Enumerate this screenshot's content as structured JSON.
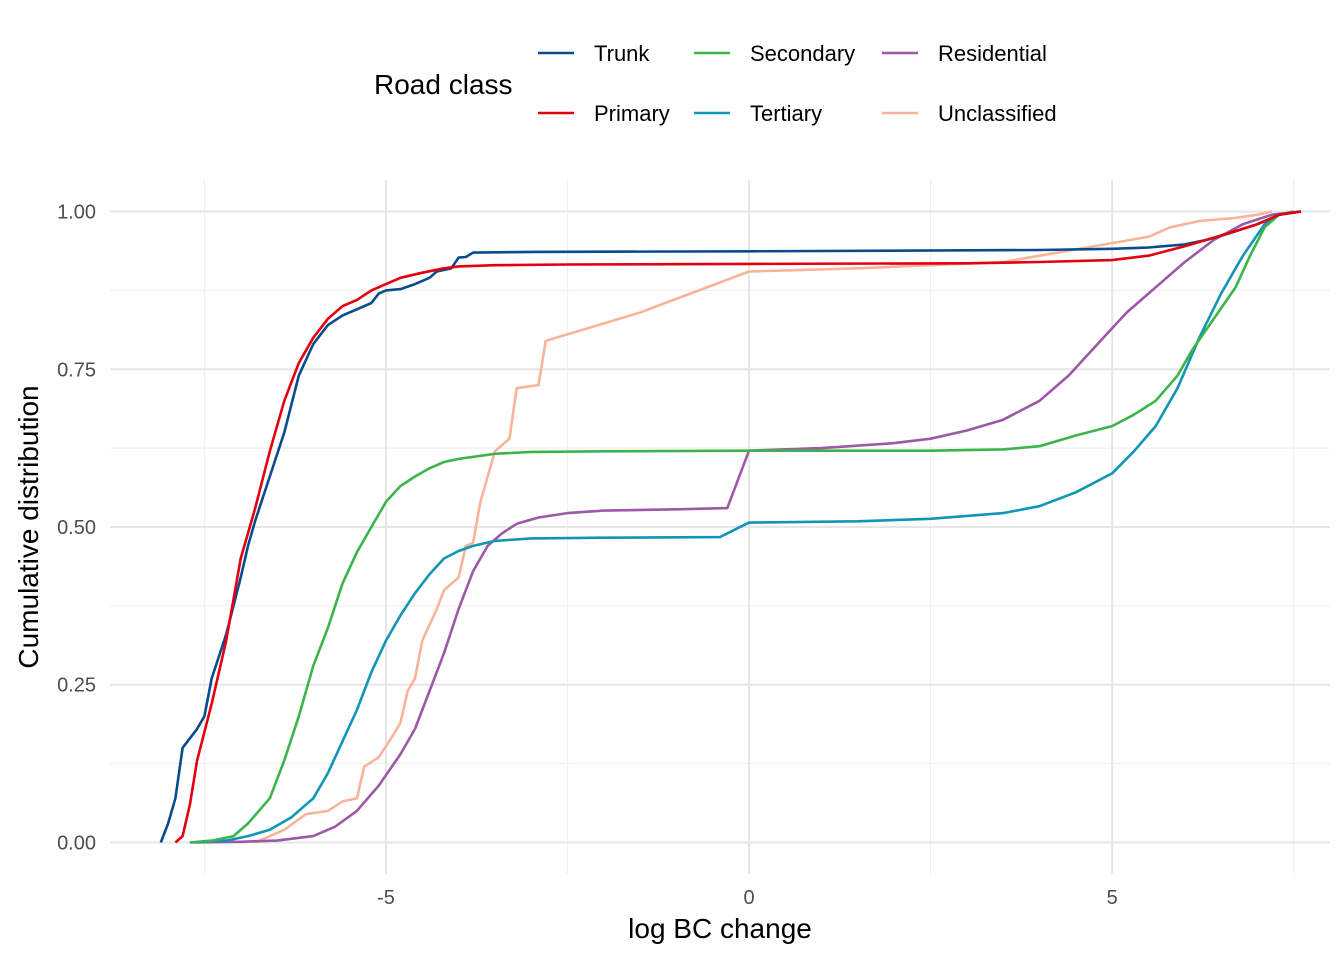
{
  "chart_data": {
    "type": "line",
    "xlabel": "log BC change",
    "ylabel": "Cumulative distribution",
    "xlim": [
      -8.8,
      8.0
    ],
    "ylim": [
      -0.05,
      1.05
    ],
    "x_ticks": [
      -5,
      0,
      5
    ],
    "x_tick_labels": [
      "-5",
      "0",
      "5"
    ],
    "y_ticks": [
      0,
      0.25,
      0.5,
      0.75,
      1.0
    ],
    "y_tick_labels": [
      "0.00",
      "0.25",
      "0.50",
      "0.75",
      "1.00"
    ],
    "grid": true,
    "legend": {
      "title": "Road class",
      "position": "top"
    },
    "series": [
      {
        "name": "Trunk",
        "color": "#084c8d",
        "points": [
          [
            -8.1,
            0.0
          ],
          [
            -8.0,
            0.03
          ],
          [
            -7.9,
            0.07
          ],
          [
            -7.8,
            0.15
          ],
          [
            -7.6,
            0.18
          ],
          [
            -7.5,
            0.2
          ],
          [
            -7.4,
            0.26
          ],
          [
            -7.2,
            0.33
          ],
          [
            -7.0,
            0.42
          ],
          [
            -6.9,
            0.47
          ],
          [
            -6.8,
            0.51
          ],
          [
            -6.6,
            0.58
          ],
          [
            -6.4,
            0.65
          ],
          [
            -6.2,
            0.74
          ],
          [
            -6.0,
            0.79
          ],
          [
            -5.8,
            0.82
          ],
          [
            -5.6,
            0.835
          ],
          [
            -5.4,
            0.845
          ],
          [
            -5.2,
            0.855
          ],
          [
            -5.1,
            0.87
          ],
          [
            -5.0,
            0.875
          ],
          [
            -4.8,
            0.877
          ],
          [
            -4.6,
            0.885
          ],
          [
            -4.4,
            0.895
          ],
          [
            -4.3,
            0.905
          ],
          [
            -4.1,
            0.91
          ],
          [
            -4.0,
            0.927
          ],
          [
            -3.9,
            0.928
          ],
          [
            -3.8,
            0.935
          ],
          [
            -3.0,
            0.936
          ],
          [
            0,
            0.937
          ],
          [
            2.0,
            0.938
          ],
          [
            4.0,
            0.939
          ],
          [
            5.0,
            0.941
          ],
          [
            5.5,
            0.943
          ],
          [
            6.0,
            0.948
          ],
          [
            6.3,
            0.955
          ],
          [
            6.6,
            0.965
          ],
          [
            7.0,
            0.98
          ],
          [
            7.3,
            0.995
          ],
          [
            7.6,
            1.0
          ]
        ]
      },
      {
        "name": "Primary",
        "color": "#e3000f",
        "points": [
          [
            -7.9,
            0.0
          ],
          [
            -7.8,
            0.01
          ],
          [
            -7.7,
            0.06
          ],
          [
            -7.6,
            0.13
          ],
          [
            -7.4,
            0.22
          ],
          [
            -7.2,
            0.32
          ],
          [
            -7.0,
            0.45
          ],
          [
            -6.8,
            0.53
          ],
          [
            -6.6,
            0.62
          ],
          [
            -6.4,
            0.7
          ],
          [
            -6.2,
            0.76
          ],
          [
            -6.0,
            0.8
          ],
          [
            -5.8,
            0.83
          ],
          [
            -5.6,
            0.85
          ],
          [
            -5.4,
            0.86
          ],
          [
            -5.2,
            0.875
          ],
          [
            -5.0,
            0.885
          ],
          [
            -4.8,
            0.895
          ],
          [
            -4.5,
            0.903
          ],
          [
            -4.2,
            0.91
          ],
          [
            -4.0,
            0.913
          ],
          [
            -3.5,
            0.915
          ],
          [
            -2.5,
            0.916
          ],
          [
            0,
            0.917
          ],
          [
            3.0,
            0.918
          ],
          [
            4.0,
            0.92
          ],
          [
            5.0,
            0.923
          ],
          [
            5.5,
            0.93
          ],
          [
            6.0,
            0.945
          ],
          [
            6.5,
            0.962
          ],
          [
            7.0,
            0.98
          ],
          [
            7.3,
            0.995
          ],
          [
            7.6,
            1.0
          ]
        ]
      },
      {
        "name": "Secondary",
        "color": "#3cb44b",
        "points": [
          [
            -7.7,
            0.0
          ],
          [
            -7.4,
            0.003
          ],
          [
            -7.1,
            0.01
          ],
          [
            -6.9,
            0.03
          ],
          [
            -6.6,
            0.07
          ],
          [
            -6.4,
            0.13
          ],
          [
            -6.2,
            0.2
          ],
          [
            -6.0,
            0.28
          ],
          [
            -5.8,
            0.34
          ],
          [
            -5.6,
            0.41
          ],
          [
            -5.4,
            0.46
          ],
          [
            -5.2,
            0.5
          ],
          [
            -5.0,
            0.54
          ],
          [
            -4.8,
            0.565
          ],
          [
            -4.6,
            0.58
          ],
          [
            -4.4,
            0.593
          ],
          [
            -4.2,
            0.603
          ],
          [
            -4.0,
            0.608
          ],
          [
            -3.5,
            0.616
          ],
          [
            -3.0,
            0.619
          ],
          [
            -2.0,
            0.62
          ],
          [
            0,
            0.621
          ],
          [
            2.5,
            0.621
          ],
          [
            3.5,
            0.623
          ],
          [
            4.0,
            0.628
          ],
          [
            4.5,
            0.645
          ],
          [
            5.0,
            0.66
          ],
          [
            5.3,
            0.678
          ],
          [
            5.6,
            0.7
          ],
          [
            5.9,
            0.74
          ],
          [
            6.1,
            0.78
          ],
          [
            6.4,
            0.83
          ],
          [
            6.7,
            0.88
          ],
          [
            6.9,
            0.93
          ],
          [
            7.1,
            0.975
          ],
          [
            7.3,
            0.995
          ],
          [
            7.5,
            1.0
          ]
        ]
      },
      {
        "name": "Tertiary",
        "color": "#0f96b6",
        "points": [
          [
            -7.6,
            0.0
          ],
          [
            -7.2,
            0.003
          ],
          [
            -6.9,
            0.01
          ],
          [
            -6.6,
            0.02
          ],
          [
            -6.3,
            0.04
          ],
          [
            -6.0,
            0.07
          ],
          [
            -5.8,
            0.11
          ],
          [
            -5.6,
            0.16
          ],
          [
            -5.4,
            0.21
          ],
          [
            -5.2,
            0.27
          ],
          [
            -5.0,
            0.32
          ],
          [
            -4.8,
            0.36
          ],
          [
            -4.6,
            0.395
          ],
          [
            -4.4,
            0.425
          ],
          [
            -4.2,
            0.45
          ],
          [
            -4.0,
            0.462
          ],
          [
            -3.8,
            0.47
          ],
          [
            -3.5,
            0.478
          ],
          [
            -3.0,
            0.482
          ],
          [
            -2.0,
            0.483
          ],
          [
            -0.4,
            0.484
          ],
          [
            0,
            0.507
          ],
          [
            1.5,
            0.509
          ],
          [
            2.5,
            0.513
          ],
          [
            3.5,
            0.522
          ],
          [
            4.0,
            0.533
          ],
          [
            4.5,
            0.555
          ],
          [
            5.0,
            0.585
          ],
          [
            5.3,
            0.62
          ],
          [
            5.6,
            0.66
          ],
          [
            5.9,
            0.72
          ],
          [
            6.2,
            0.8
          ],
          [
            6.5,
            0.87
          ],
          [
            6.8,
            0.93
          ],
          [
            7.1,
            0.98
          ],
          [
            7.3,
            0.995
          ],
          [
            7.6,
            1.0
          ]
        ]
      },
      {
        "name": "Residential",
        "color": "#9b59a6",
        "points": [
          [
            -7.7,
            0.0
          ],
          [
            -7.0,
            0.001
          ],
          [
            -6.5,
            0.003
          ],
          [
            -6.0,
            0.01
          ],
          [
            -5.7,
            0.025
          ],
          [
            -5.4,
            0.05
          ],
          [
            -5.1,
            0.09
          ],
          [
            -4.8,
            0.14
          ],
          [
            -4.6,
            0.18
          ],
          [
            -4.4,
            0.24
          ],
          [
            -4.2,
            0.3
          ],
          [
            -4.0,
            0.37
          ],
          [
            -3.8,
            0.43
          ],
          [
            -3.6,
            0.47
          ],
          [
            -3.4,
            0.49
          ],
          [
            -3.2,
            0.505
          ],
          [
            -2.9,
            0.515
          ],
          [
            -2.5,
            0.522
          ],
          [
            -2.0,
            0.526
          ],
          [
            -1.0,
            0.528
          ],
          [
            -0.3,
            0.53
          ],
          [
            0,
            0.621
          ],
          [
            1.0,
            0.625
          ],
          [
            2.0,
            0.633
          ],
          [
            2.5,
            0.64
          ],
          [
            3.0,
            0.653
          ],
          [
            3.5,
            0.67
          ],
          [
            4.0,
            0.7
          ],
          [
            4.4,
            0.74
          ],
          [
            4.8,
            0.79
          ],
          [
            5.2,
            0.84
          ],
          [
            5.6,
            0.88
          ],
          [
            6.0,
            0.92
          ],
          [
            6.4,
            0.955
          ],
          [
            6.8,
            0.98
          ],
          [
            7.2,
            0.995
          ],
          [
            7.6,
            1.0
          ]
        ]
      },
      {
        "name": "Unclassified",
        "color": "#f7b49a",
        "points": [
          [
            -6.8,
            0.0
          ],
          [
            -6.4,
            0.02
          ],
          [
            -6.1,
            0.045
          ],
          [
            -5.8,
            0.05
          ],
          [
            -5.6,
            0.065
          ],
          [
            -5.4,
            0.07
          ],
          [
            -5.3,
            0.12
          ],
          [
            -5.1,
            0.135
          ],
          [
            -4.9,
            0.17
          ],
          [
            -4.8,
            0.19
          ],
          [
            -4.7,
            0.24
          ],
          [
            -4.6,
            0.26
          ],
          [
            -4.5,
            0.32
          ],
          [
            -4.3,
            0.37
          ],
          [
            -4.2,
            0.4
          ],
          [
            -4.0,
            0.42
          ],
          [
            -3.9,
            0.47
          ],
          [
            -3.8,
            0.475
          ],
          [
            -3.7,
            0.54
          ],
          [
            -3.5,
            0.62
          ],
          [
            -3.3,
            0.64
          ],
          [
            -3.2,
            0.72
          ],
          [
            -2.9,
            0.725
          ],
          [
            -2.8,
            0.795
          ],
          [
            -1.5,
            0.84
          ],
          [
            0,
            0.905
          ],
          [
            1.5,
            0.91
          ],
          [
            2.5,
            0.915
          ],
          [
            3.5,
            0.92
          ],
          [
            4.0,
            0.93
          ],
          [
            4.5,
            0.94
          ],
          [
            5.0,
            0.95
          ],
          [
            5.5,
            0.96
          ],
          [
            5.8,
            0.975
          ],
          [
            6.2,
            0.985
          ],
          [
            6.7,
            0.99
          ],
          [
            7.0,
            0.995
          ],
          [
            7.2,
            1.0
          ]
        ]
      }
    ]
  }
}
